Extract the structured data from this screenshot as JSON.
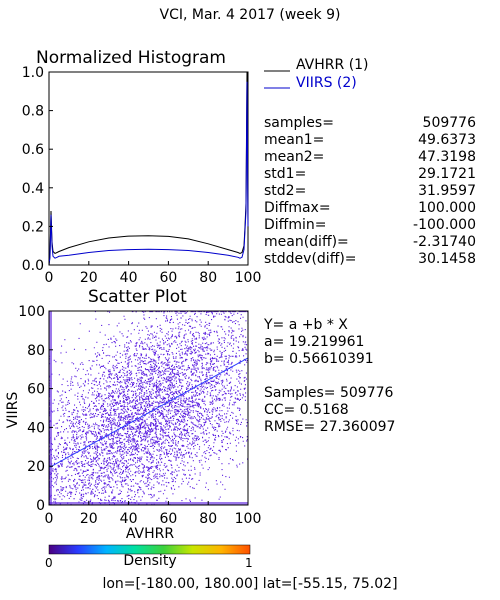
{
  "header": {
    "title": "VCI,  Mar. 4 2017 (week 9)"
  },
  "histogram": {
    "title": "Normalized Histogram"
  },
  "legend": [
    {
      "label": "AVHRR (1)",
      "color": "#000000"
    },
    {
      "label": "VIIRS (2)",
      "color": "#0000cc"
    }
  ],
  "stats": [
    {
      "label": "samples=",
      "value": "509776"
    },
    {
      "label": "mean1=",
      "value": "49.6373"
    },
    {
      "label": "mean2=",
      "value": "47.3198"
    },
    {
      "label": "std1=",
      "value": "29.1721"
    },
    {
      "label": "std2=",
      "value": "31.9597"
    },
    {
      "label": "Diffmax=",
      "value": "100.000"
    },
    {
      "label": "Diffmin=",
      "value": "-100.000"
    },
    {
      "label": "mean(diff)=",
      "value": "-2.31740"
    },
    {
      "label": "stddev(diff)=",
      "value": "30.1458"
    }
  ],
  "scatter": {
    "title": "Scatter Plot"
  },
  "regression": {
    "formula": "Y= a +b * X",
    "a_text": "a= 19.219961",
    "b_text": "b= 0.56610391",
    "samples_text": "Samples= 509776",
    "cc_text": "CC=  0.5168",
    "rmse_text": "RMSE= 27.360097"
  },
  "colorbar": {
    "label": "Density",
    "min_label": "0",
    "max_label": "1",
    "colors": [
      "#4b0082",
      "#2a3cff",
      "#00b4ff",
      "#00e0a0",
      "#3cd23c",
      "#c8e600",
      "#ffb400",
      "#ff5000"
    ]
  },
  "footer": {
    "coords": "lon=[-180.00, 180.00] lat=[-55.15, 75.02]"
  },
  "chart_data": [
    {
      "type": "line",
      "title": "Normalized Histogram",
      "xlim": [
        0,
        100
      ],
      "ylim": [
        0,
        1.0
      ],
      "xticks": [
        0,
        20,
        40,
        60,
        80,
        100
      ],
      "yticks": [
        0.0,
        0.2,
        0.4,
        0.6,
        0.8,
        1.0
      ],
      "ytick_labels": [
        "0.0",
        "0.2",
        "0.4",
        "0.6",
        "0.8",
        "1.0"
      ],
      "grid": false,
      "legend_position": "right",
      "series": [
        {
          "name": "AVHRR (1)",
          "color": "#000000",
          "x": [
            0,
            0.5,
            1,
            1.5,
            2,
            3,
            4,
            5,
            10,
            20,
            30,
            40,
            50,
            60,
            70,
            80,
            90,
            95,
            96,
            97,
            98,
            98.5,
            99,
            99.5,
            100
          ],
          "y": [
            0,
            0.05,
            0.28,
            0.12,
            0.07,
            0.06,
            0.065,
            0.07,
            0.09,
            0.12,
            0.14,
            0.15,
            0.152,
            0.148,
            0.135,
            0.11,
            0.08,
            0.065,
            0.06,
            0.065,
            0.1,
            0.2,
            0.32,
            1.0,
            0.22
          ]
        },
        {
          "name": "VIIRS (2)",
          "color": "#0000cc",
          "x": [
            0,
            0.5,
            1,
            1.5,
            2,
            3,
            4,
            5,
            10,
            20,
            30,
            40,
            50,
            60,
            70,
            80,
            90,
            95,
            96,
            97,
            98,
            98.5,
            99,
            99.5,
            100
          ],
          "y": [
            0,
            0.04,
            0.26,
            0.1,
            0.045,
            0.035,
            0.04,
            0.045,
            0.05,
            0.065,
            0.075,
            0.08,
            0.082,
            0.08,
            0.075,
            0.065,
            0.05,
            0.04,
            0.035,
            0.04,
            0.08,
            0.18,
            0.28,
            0.95,
            0.2
          ]
        }
      ]
    },
    {
      "type": "scatter",
      "title": "Scatter Plot",
      "xlabel": "AVHRR",
      "ylabel": "VIIRS",
      "xlim": [
        0,
        100
      ],
      "ylim": [
        0,
        100
      ],
      "xticks": [
        0,
        20,
        40,
        60,
        80,
        100
      ],
      "yticks": [
        0,
        20,
        40,
        60,
        80,
        100
      ],
      "samples": 509776,
      "regression": {
        "a": 19.219961,
        "b": 0.56610391,
        "cc": 0.5168,
        "rmse": 27.360097
      },
      "point_color": "#5a1ee0",
      "fit_line_color": "#2a3cff",
      "grid": false
    }
  ]
}
